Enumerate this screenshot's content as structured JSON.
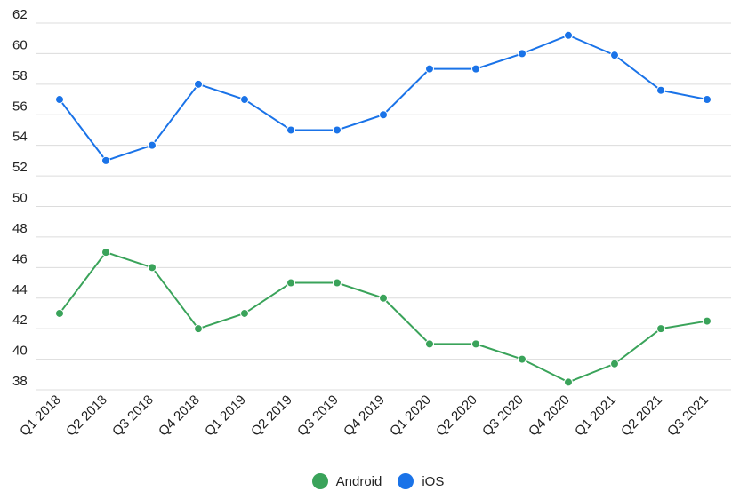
{
  "chart_data": {
    "type": "line",
    "categories": [
      "Q1 2018",
      "Q2 2018",
      "Q3 2018",
      "Q4 2018",
      "Q1 2019",
      "Q2 2019",
      "Q3 2019",
      "Q4 2019",
      "Q1 2020",
      "Q2 2020",
      "Q3 2020",
      "Q4 2020",
      "Q1 2021",
      "Q2 2021",
      "Q3 2021"
    ],
    "series": [
      {
        "name": "Android",
        "color": "#3aa35a",
        "values": [
          43,
          47,
          46,
          42,
          43,
          45,
          45,
          44,
          41,
          41,
          40,
          38.5,
          39.7,
          42,
          42.5
        ]
      },
      {
        "name": "iOS",
        "color": "#1a73e8",
        "values": [
          57,
          53,
          54,
          58,
          57,
          55,
          55,
          56,
          59,
          59,
          60,
          61.2,
          59.9,
          57.6,
          57
        ]
      }
    ],
    "ylim": [
      38,
      62
    ],
    "yticks": [
      38,
      40,
      42,
      44,
      46,
      48,
      50,
      52,
      54,
      56,
      58,
      60,
      62
    ],
    "grid": true,
    "legend_position": "bottom-center"
  }
}
